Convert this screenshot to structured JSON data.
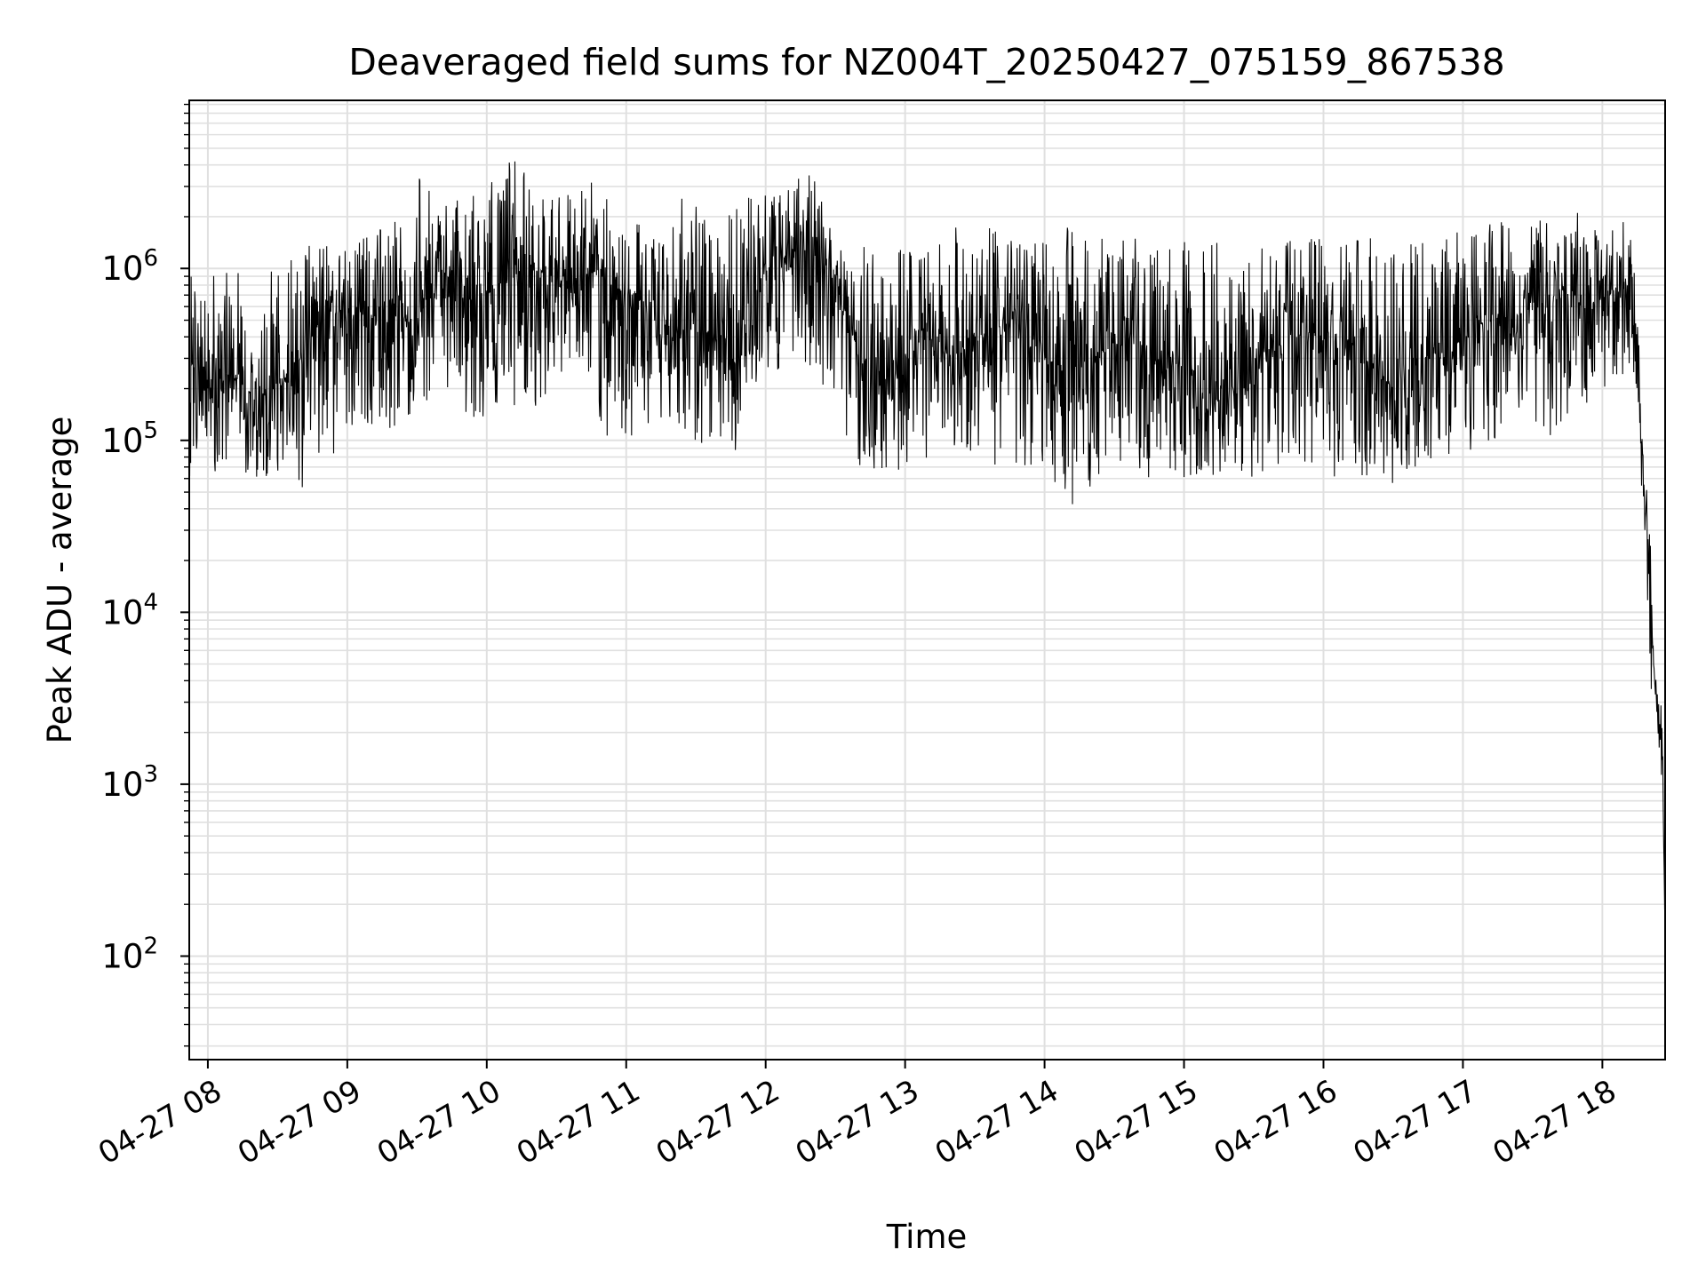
{
  "chart_data": {
    "type": "line",
    "title": "Deaveraged field sums for NZ004T_20250427_075159_867538",
    "xlabel": "Time",
    "ylabel": "Peak ADU - average",
    "yscale": "log",
    "ylim": [
      25,
      9500000
    ],
    "xlim": [
      "04-27 07:52",
      "04-27 18:27"
    ],
    "grid": true,
    "line_color": "#000000",
    "grid_color": "#e0e0e0",
    "x_ticks": [
      "04-27 08",
      "04-27 09",
      "04-27 10",
      "04-27 11",
      "04-27 12",
      "04-27 13",
      "04-27 14",
      "04-27 15",
      "04-27 16",
      "04-27 17",
      "04-27 18"
    ],
    "y_ticks": [
      {
        "value": 100,
        "base": "10",
        "exp": "2"
      },
      {
        "value": 1000,
        "base": "10",
        "exp": "3"
      },
      {
        "value": 10000,
        "base": "10",
        "exp": "4"
      },
      {
        "value": 100000,
        "base": "10",
        "exp": "5"
      },
      {
        "value": 1000000,
        "base": "10",
        "exp": "6"
      }
    ],
    "series": [
      {
        "x": [
          "04-27 07:52",
          "04-27 08:00",
          "04-27 08:10",
          "04-27 08:20",
          "04-27 08:30",
          "04-27 08:40",
          "04-27 08:50",
          "04-27 09:00",
          "04-27 09:10",
          "04-27 09:20",
          "04-27 09:30",
          "04-27 09:40",
          "04-27 09:50",
          "04-27 10:00",
          "04-27 10:10",
          "04-27 10:20",
          "04-27 10:30",
          "04-27 10:40",
          "04-27 10:50",
          "04-27 11:00",
          "04-27 11:10",
          "04-27 11:20",
          "04-27 11:30",
          "04-27 11:40",
          "04-27 11:50",
          "04-27 12:00",
          "04-27 12:10",
          "04-27 12:20",
          "04-27 12:30",
          "04-27 12:40",
          "04-27 12:50",
          "04-27 13:00",
          "04-27 13:10",
          "04-27 13:20",
          "04-27 13:30",
          "04-27 13:40",
          "04-27 13:50",
          "04-27 14:00",
          "04-27 14:10",
          "04-27 14:20",
          "04-27 14:30",
          "04-27 14:40",
          "04-27 14:50",
          "04-27 15:00",
          "04-27 15:10",
          "04-27 15:20",
          "04-27 15:30",
          "04-27 15:40",
          "04-27 15:50",
          "04-27 16:00",
          "04-27 16:10",
          "04-27 16:20",
          "04-27 16:30",
          "04-27 16:40",
          "04-27 16:50",
          "04-27 17:00",
          "04-27 17:10",
          "04-27 17:20",
          "04-27 17:30",
          "04-27 17:40",
          "04-27 17:50",
          "04-27 18:00",
          "04-27 18:10",
          "04-27 18:15",
          "04-27 18:18",
          "04-27 18:20",
          "04-27 18:22",
          "04-27 18:24",
          "04-27 18:26",
          "04-27 18:27"
        ],
        "y": [
          300000,
          200000,
          250000,
          180000,
          200000,
          300000,
          500000,
          600000,
          500000,
          400000,
          600000,
          900000,
          800000,
          700000,
          900000,
          1000000,
          800000,
          900000,
          1000000,
          800000,
          500000,
          400000,
          500000,
          300000,
          300000,
          1000000,
          1200000,
          1300000,
          900000,
          300000,
          200000,
          300000,
          400000,
          300000,
          400000,
          400000,
          500000,
          300000,
          250000,
          300000,
          350000,
          400000,
          250000,
          300000,
          150000,
          200000,
          300000,
          350000,
          400000,
          400000,
          300000,
          300000,
          200000,
          300000,
          300000,
          400000,
          500000,
          500000,
          600000,
          700000,
          600000,
          700000,
          700000,
          400000,
          50000,
          20000,
          5000,
          2000,
          1500,
          200
        ],
        "envelope_max": [
          900000,
          900000,
          1000000,
          900000,
          1000000,
          1300000,
          1500000,
          1700000,
          1700000,
          2000000,
          3500000,
          2500000,
          2500000,
          3300000,
          5000000,
          3000000,
          3000000,
          3500000,
          3000000,
          2000000,
          2800000,
          2700000,
          2500000,
          1800000,
          2500000,
          3000000,
          3500000,
          3500000,
          1700000,
          1500000,
          1200000,
          1400000,
          1300000,
          1800000,
          2000000,
          1700000,
          1500000,
          1700000,
          2000000,
          1800000,
          1600000,
          1600000,
          1500000,
          1600000,
          1500000,
          1300000,
          1300000,
          1400000,
          1500000,
          1500000,
          1400000,
          1900000,
          1600000,
          1500000,
          1500000,
          1700000,
          1900000,
          2200000,
          2000000,
          1800000,
          2200000,
          1500000,
          2000000,
          1000000,
          100000,
          60000,
          6000,
          4000,
          2500,
          400
        ],
        "envelope_min": [
          60000,
          60000,
          70000,
          60000,
          60000,
          50000,
          60000,
          100000,
          100000,
          120000,
          150000,
          150000,
          150000,
          120000,
          150000,
          150000,
          200000,
          250000,
          100000,
          80000,
          100000,
          130000,
          100000,
          80000,
          80000,
          200000,
          300000,
          250000,
          150000,
          60000,
          60000,
          70000,
          80000,
          90000,
          80000,
          70000,
          60000,
          50000,
          40000,
          50000,
          60000,
          60000,
          60000,
          60000,
          60000,
          60000,
          60000,
          70000,
          70000,
          60000,
          60000,
          60000,
          50000,
          60000,
          60000,
          80000,
          100000,
          100000,
          120000,
          100000,
          150000,
          200000,
          200000,
          200000,
          20000,
          8000,
          1500,
          1200,
          1000,
          100
        ]
      }
    ]
  }
}
